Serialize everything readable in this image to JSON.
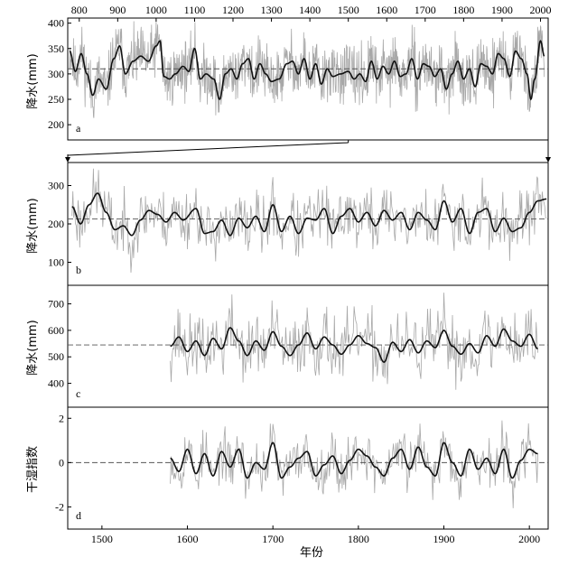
{
  "chart_data": [
    {
      "id": "a",
      "type": "line",
      "panel_label": "a",
      "ylabel": "降水(mm)",
      "xlim": [
        770,
        2020
      ],
      "ylim": [
        170,
        410
      ],
      "xticks": [
        800,
        900,
        1000,
        1100,
        1200,
        1300,
        1400,
        1500,
        1600,
        1700,
        1800,
        1900,
        2000
      ],
      "yticks": [
        200,
        250,
        300,
        350,
        400
      ],
      "xaxis_position": "top",
      "mean": 310,
      "annual_range": [
        775,
        2010
      ],
      "smooth": [
        [
          775,
          345
        ],
        [
          790,
          305
        ],
        [
          805,
          340
        ],
        [
          820,
          300
        ],
        [
          835,
          258
        ],
        [
          850,
          290
        ],
        [
          870,
          270
        ],
        [
          890,
          330
        ],
        [
          905,
          355
        ],
        [
          920,
          300
        ],
        [
          940,
          325
        ],
        [
          960,
          335
        ],
        [
          980,
          325
        ],
        [
          1000,
          355
        ],
        [
          1010,
          365
        ],
        [
          1020,
          295
        ],
        [
          1035,
          290
        ],
        [
          1050,
          300
        ],
        [
          1070,
          315
        ],
        [
          1085,
          305
        ],
        [
          1100,
          350
        ],
        [
          1115,
          290
        ],
        [
          1130,
          300
        ],
        [
          1150,
          290
        ],
        [
          1165,
          250
        ],
        [
          1180,
          300
        ],
        [
          1195,
          310
        ],
        [
          1210,
          290
        ],
        [
          1225,
          320
        ],
        [
          1240,
          330
        ],
        [
          1255,
          290
        ],
        [
          1270,
          320
        ],
        [
          1285,
          300
        ],
        [
          1300,
          285
        ],
        [
          1320,
          290
        ],
        [
          1340,
          320
        ],
        [
          1355,
          325
        ],
        [
          1370,
          300
        ],
        [
          1385,
          330
        ],
        [
          1400,
          290
        ],
        [
          1415,
          320
        ],
        [
          1430,
          280
        ],
        [
          1445,
          310
        ],
        [
          1460,
          295
        ],
        [
          1480,
          300
        ],
        [
          1500,
          305
        ],
        [
          1515,
          290
        ],
        [
          1530,
          300
        ],
        [
          1545,
          285
        ],
        [
          1560,
          325
        ],
        [
          1575,
          290
        ],
        [
          1590,
          315
        ],
        [
          1605,
          300
        ],
        [
          1620,
          325
        ],
        [
          1635,
          295
        ],
        [
          1650,
          300
        ],
        [
          1665,
          330
        ],
        [
          1680,
          290
        ],
        [
          1695,
          320
        ],
        [
          1710,
          315
        ],
        [
          1725,
          295
        ],
        [
          1740,
          310
        ],
        [
          1755,
          270
        ],
        [
          1770,
          300
        ],
        [
          1785,
          325
        ],
        [
          1800,
          290
        ],
        [
          1815,
          310
        ],
        [
          1830,
          275
        ],
        [
          1845,
          320
        ],
        [
          1860,
          315
        ],
        [
          1875,
          300
        ],
        [
          1890,
          340
        ],
        [
          1905,
          330
        ],
        [
          1920,
          295
        ],
        [
          1935,
          345
        ],
        [
          1950,
          330
        ],
        [
          1965,
          300
        ],
        [
          1975,
          250
        ],
        [
          1985,
          290
        ],
        [
          2000,
          365
        ],
        [
          2010,
          335
        ]
      ]
    },
    {
      "id": "b",
      "type": "line",
      "panel_label": "b",
      "ylabel": "降水(mm)",
      "xlim": [
        1460,
        2022
      ],
      "ylim": [
        40,
        360
      ],
      "yticks": [
        100,
        200,
        300
      ],
      "mean": 213,
      "annual_range": [
        1465,
        2020
      ],
      "smooth": [
        [
          1465,
          245
        ],
        [
          1475,
          200
        ],
        [
          1485,
          250
        ],
        [
          1495,
          280
        ],
        [
          1505,
          230
        ],
        [
          1515,
          185
        ],
        [
          1525,
          195
        ],
        [
          1535,
          170
        ],
        [
          1545,
          210
        ],
        [
          1555,
          235
        ],
        [
          1565,
          225
        ],
        [
          1575,
          205
        ],
        [
          1585,
          230
        ],
        [
          1595,
          210
        ],
        [
          1610,
          240
        ],
        [
          1620,
          175
        ],
        [
          1630,
          180
        ],
        [
          1640,
          210
        ],
        [
          1650,
          170
        ],
        [
          1660,
          215
        ],
        [
          1670,
          190
        ],
        [
          1680,
          220
        ],
        [
          1690,
          180
        ],
        [
          1700,
          250
        ],
        [
          1710,
          180
        ],
        [
          1720,
          220
        ],
        [
          1730,
          175
        ],
        [
          1740,
          215
        ],
        [
          1750,
          210
        ],
        [
          1760,
          240
        ],
        [
          1770,
          175
        ],
        [
          1780,
          220
        ],
        [
          1790,
          240
        ],
        [
          1800,
          205
        ],
        [
          1810,
          230
        ],
        [
          1820,
          195
        ],
        [
          1830,
          235
        ],
        [
          1840,
          210
        ],
        [
          1850,
          230
        ],
        [
          1860,
          185
        ],
        [
          1870,
          230
        ],
        [
          1880,
          210
        ],
        [
          1890,
          185
        ],
        [
          1900,
          260
        ],
        [
          1910,
          205
        ],
        [
          1920,
          240
        ],
        [
          1930,
          175
        ],
        [
          1940,
          230
        ],
        [
          1950,
          240
        ],
        [
          1960,
          180
        ],
        [
          1970,
          215
        ],
        [
          1980,
          180
        ],
        [
          1990,
          190
        ],
        [
          2000,
          230
        ],
        [
          2010,
          260
        ],
        [
          2020,
          265
        ]
      ]
    },
    {
      "id": "c",
      "type": "line",
      "panel_label": "c",
      "ylabel": "降水(mm)",
      "xlim": [
        1460,
        2022
      ],
      "ylim": [
        310,
        770
      ],
      "yticks": [
        400,
        500,
        600,
        700
      ],
      "mean": 545,
      "annual_range": [
        1580,
        2010
      ],
      "smooth": [
        [
          1580,
          540
        ],
        [
          1590,
          575
        ],
        [
          1600,
          520
        ],
        [
          1610,
          560
        ],
        [
          1620,
          505
        ],
        [
          1630,
          570
        ],
        [
          1640,
          530
        ],
        [
          1650,
          610
        ],
        [
          1660,
          560
        ],
        [
          1670,
          505
        ],
        [
          1680,
          560
        ],
        [
          1690,
          525
        ],
        [
          1700,
          595
        ],
        [
          1710,
          540
        ],
        [
          1720,
          505
        ],
        [
          1730,
          545
        ],
        [
          1740,
          590
        ],
        [
          1750,
          530
        ],
        [
          1760,
          575
        ],
        [
          1770,
          545
        ],
        [
          1780,
          510
        ],
        [
          1790,
          545
        ],
        [
          1800,
          580
        ],
        [
          1810,
          550
        ],
        [
          1820,
          535
        ],
        [
          1830,
          480
        ],
        [
          1840,
          555
        ],
        [
          1850,
          520
        ],
        [
          1860,
          565
        ],
        [
          1870,
          515
        ],
        [
          1880,
          560
        ],
        [
          1890,
          535
        ],
        [
          1900,
          600
        ],
        [
          1910,
          540
        ],
        [
          1920,
          510
        ],
        [
          1930,
          550
        ],
        [
          1940,
          515
        ],
        [
          1950,
          580
        ],
        [
          1960,
          540
        ],
        [
          1970,
          605
        ],
        [
          1980,
          560
        ],
        [
          1990,
          540
        ],
        [
          2000,
          585
        ],
        [
          2010,
          530
        ]
      ]
    },
    {
      "id": "d",
      "type": "line",
      "panel_label": "d",
      "ylabel": "干湿指数",
      "xlabel": "年份",
      "xlim": [
        1460,
        2022
      ],
      "ylim": [
        -3,
        2.5
      ],
      "xticks": [
        1500,
        1600,
        1700,
        1800,
        1900,
        2000
      ],
      "yticks": [
        -2,
        0,
        2
      ],
      "mean": 0,
      "annual_range": [
        1580,
        2010
      ],
      "smooth": [
        [
          1580,
          0.2
        ],
        [
          1590,
          -0.4
        ],
        [
          1600,
          0.6
        ],
        [
          1610,
          -0.5
        ],
        [
          1620,
          0.4
        ],
        [
          1630,
          -0.6
        ],
        [
          1640,
          0.5
        ],
        [
          1650,
          -0.2
        ],
        [
          1660,
          0.6
        ],
        [
          1670,
          -0.7
        ],
        [
          1680,
          0.0
        ],
        [
          1690,
          -0.3
        ],
        [
          1700,
          0.9
        ],
        [
          1710,
          -0.7
        ],
        [
          1720,
          -0.2
        ],
        [
          1730,
          0.2
        ],
        [
          1740,
          0.5
        ],
        [
          1750,
          -0.6
        ],
        [
          1760,
          -0.1
        ],
        [
          1770,
          0.3
        ],
        [
          1780,
          -0.5
        ],
        [
          1790,
          0.1
        ],
        [
          1800,
          0.6
        ],
        [
          1810,
          0.3
        ],
        [
          1820,
          -0.2
        ],
        [
          1830,
          -0.6
        ],
        [
          1840,
          0.2
        ],
        [
          1850,
          0.6
        ],
        [
          1860,
          -0.3
        ],
        [
          1870,
          0.7
        ],
        [
          1880,
          -0.2
        ],
        [
          1890,
          -0.6
        ],
        [
          1900,
          0.9
        ],
        [
          1910,
          0.0
        ],
        [
          1920,
          -0.6
        ],
        [
          1930,
          0.6
        ],
        [
          1940,
          -0.3
        ],
        [
          1950,
          0.2
        ],
        [
          1960,
          -0.5
        ],
        [
          1970,
          0.6
        ],
        [
          1980,
          -0.7
        ],
        [
          1990,
          0.1
        ],
        [
          2000,
          0.6
        ],
        [
          2010,
          0.4
        ]
      ]
    }
  ],
  "colors": {
    "annual": "#a8a8a8",
    "smooth": "#111111",
    "mean": "#555555",
    "frame": "#000000"
  }
}
